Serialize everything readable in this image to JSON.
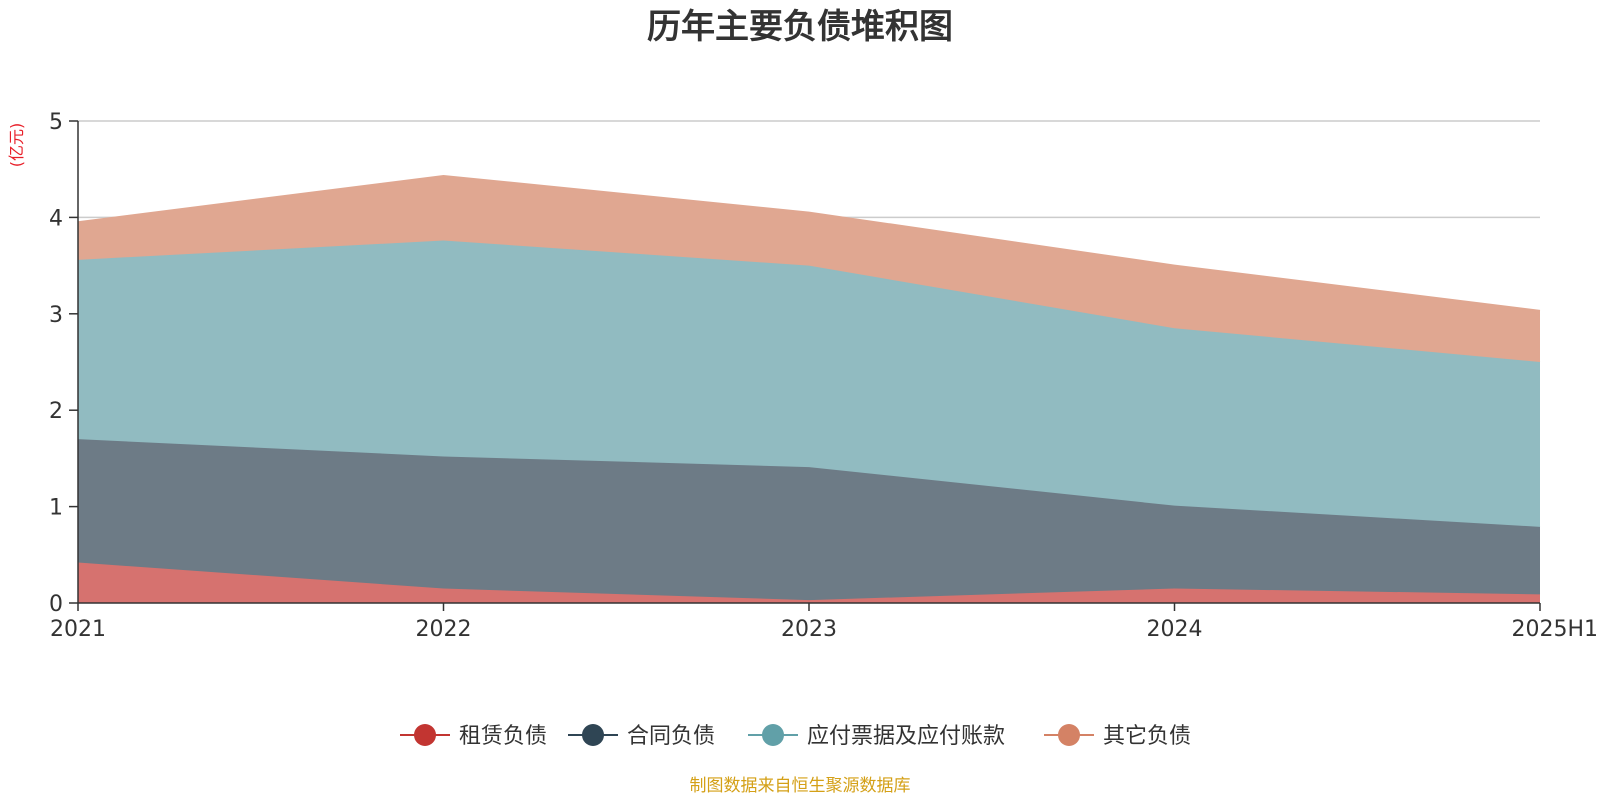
{
  "chart_data": {
    "type": "area",
    "stacked": true,
    "title": "历年主要负债堆积图",
    "unit_label": "(亿元)",
    "xlabel": "",
    "ylabel": "(亿元)",
    "categories": [
      "2021",
      "2022",
      "2023",
      "2024",
      "2025H1"
    ],
    "ylim": [
      0,
      5
    ],
    "yticks": [
      "0",
      "1",
      "2",
      "3",
      "4",
      "5"
    ],
    "grid": true,
    "legend_position": "bottom",
    "series": [
      {
        "name": "租赁负债",
        "values": [
          0.42,
          0.15,
          0.03,
          0.15,
          0.09
        ],
        "color": "#c23531",
        "fill": "#d6726f"
      },
      {
        "name": "合同负债",
        "values": [
          1.28,
          1.37,
          1.38,
          0.86,
          0.7
        ],
        "color": "#2f4554",
        "fill": "#6d7b86"
      },
      {
        "name": "应付票据及应付账款",
        "values": [
          1.86,
          2.24,
          2.09,
          1.84,
          1.71
        ],
        "color": "#61a0a8",
        "fill": "#91bbc1"
      },
      {
        "name": "其它负债",
        "values": [
          0.39,
          0.67,
          0.55,
          0.65,
          0.53
        ],
        "color": "#d48265",
        "fill": "#e0a791"
      }
    ],
    "source_note": "制图数据来自恒生聚源数据库",
    "colors": {
      "unit": "#e8202a",
      "source": "#d4a017",
      "axis": "#333333",
      "grid": "#cccccc"
    }
  }
}
